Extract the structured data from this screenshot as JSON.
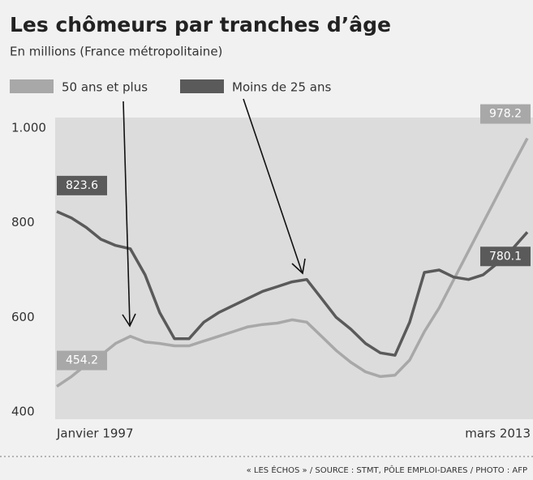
{
  "chart_data": {
    "type": "line",
    "title": "Les chômeurs par tranches d’âge",
    "subtitle": "En millions (France métropolitaine)",
    "source": "« LES ÉCHOS » / SOURCE : STMT, PÔLE EMPLOI-DARES / PHOTO : AFP",
    "categories": [
      "Janvier 1997",
      null,
      null,
      null,
      null,
      null,
      null,
      null,
      null,
      null,
      null,
      null,
      null,
      null,
      null,
      null,
      null,
      null,
      null,
      null,
      null,
      null,
      null,
      null,
      null,
      null,
      null,
      null,
      null,
      null,
      null,
      null,
      "mars 2013"
    ],
    "series": [
      {
        "name": "50 ans et plus",
        "color": "#a8a8a8",
        "values": [
          454.2,
          475,
          500,
          520,
          545,
          560,
          548,
          545,
          540,
          540,
          550,
          560,
          570,
          580,
          585,
          588,
          595,
          590,
          560,
          530,
          505,
          485,
          475,
          478,
          510,
          570,
          620,
          680,
          740,
          800,
          860,
          920,
          978.2
        ]
      },
      {
        "name": "Moins de 25 ans",
        "color": "#5a5a5a",
        "values": [
          823.6,
          810,
          790,
          765,
          752,
          745,
          690,
          610,
          555,
          555,
          590,
          610,
          625,
          640,
          655,
          665,
          675,
          680,
          640,
          600,
          575,
          545,
          525,
          520,
          590,
          695,
          700,
          685,
          680,
          690,
          715,
          745,
          780.1
        ]
      }
    ],
    "ylim": [
      385,
      1022
    ],
    "yticks": [
      400,
      600,
      800,
      {
        "value": 1000,
        "label": "1.000"
      }
    ],
    "grid": false
  }
}
